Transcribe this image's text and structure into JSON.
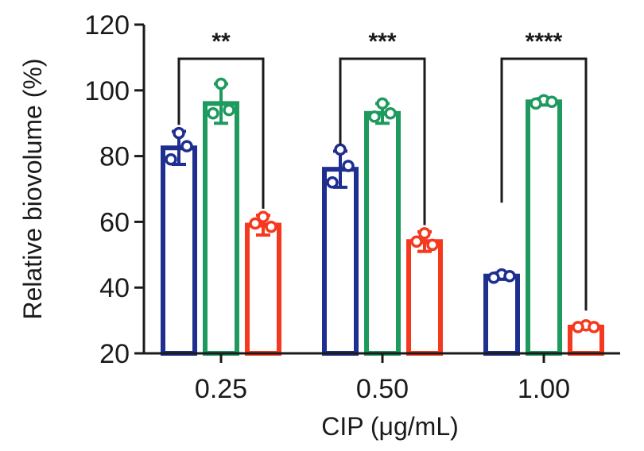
{
  "chart_data": {
    "type": "bar",
    "xlabel": "CIP (μg/mL)",
    "ylabel": "Relative biovolume (%)",
    "ylim": [
      20,
      120
    ],
    "yticks": [
      "20",
      "40",
      "60",
      "80",
      "100",
      "120"
    ],
    "categories": [
      "0.25",
      "0.50",
      "1.00"
    ],
    "series": [
      {
        "color": "#1f2f8f",
        "values": [
          82.5,
          76,
          43.5
        ],
        "errors": [
          5,
          5.5,
          1
        ],
        "points": [
          [
            87,
            83,
            79
          ],
          [
            82,
            77,
            72
          ],
          [
            44,
            43.5,
            43
          ]
        ]
      },
      {
        "color": "#1f9a5e",
        "values": [
          96,
          93,
          96.5
        ],
        "errors": [
          6,
          3,
          1
        ],
        "points": [
          [
            102,
            94,
            93
          ],
          [
            96,
            93,
            92
          ],
          [
            97,
            96.5,
            96
          ]
        ]
      },
      {
        "color": "#f5391f",
        "values": [
          59,
          54,
          28
        ],
        "errors": [
          3,
          3,
          0.6
        ],
        "points": [
          [
            61.5,
            58.5,
            59.5
          ],
          [
            56.5,
            53,
            54
          ],
          [
            28.5,
            28,
            28
          ]
        ]
      }
    ],
    "significance": [
      "**",
      "***",
      "****"
    ],
    "grid": false,
    "legend": "none"
  }
}
